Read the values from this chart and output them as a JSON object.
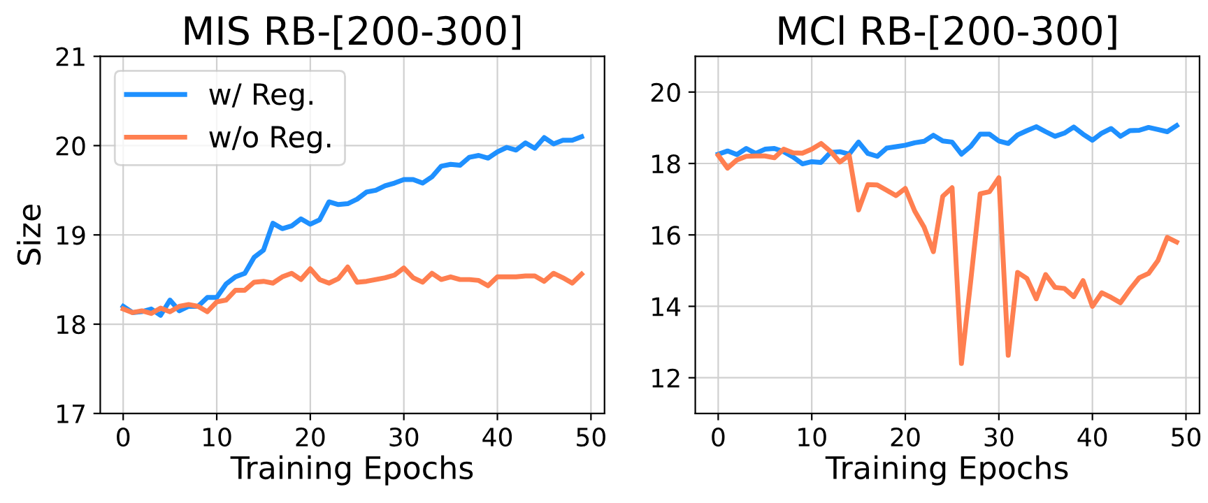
{
  "chart_data": [
    {
      "type": "line",
      "title": "MIS RB-[200-300]",
      "xlabel": "Training Epochs",
      "ylabel": "Size",
      "x": [
        0,
        1,
        2,
        3,
        4,
        5,
        6,
        7,
        8,
        9,
        10,
        11,
        12,
        13,
        14,
        15,
        16,
        17,
        18,
        19,
        20,
        21,
        22,
        23,
        24,
        25,
        26,
        27,
        28,
        29,
        30,
        31,
        32,
        33,
        34,
        35,
        36,
        37,
        38,
        39,
        40,
        41,
        42,
        43,
        44,
        45,
        46,
        47,
        48,
        49
      ],
      "xlim": [
        -2.45,
        51.45
      ],
      "ylim": [
        17,
        21
      ],
      "xticks": [
        0,
        10,
        20,
        30,
        40,
        50
      ],
      "yticks": [
        17,
        18,
        19,
        20,
        21
      ],
      "grid": true,
      "legend": "top left",
      "series": [
        {
          "name": "w/ Reg.",
          "color": "#1e90ff",
          "values": [
            18.2,
            18.13,
            18.14,
            18.17,
            18.1,
            18.27,
            18.15,
            18.2,
            18.2,
            18.3,
            18.3,
            18.45,
            18.53,
            18.57,
            18.75,
            18.83,
            19.13,
            19.07,
            19.1,
            19.18,
            19.12,
            19.17,
            19.37,
            19.34,
            19.35,
            19.4,
            19.48,
            19.5,
            19.55,
            19.58,
            19.62,
            19.62,
            19.58,
            19.65,
            19.77,
            19.79,
            19.78,
            19.87,
            19.89,
            19.86,
            19.93,
            19.98,
            19.95,
            20.03,
            19.97,
            20.09,
            20.02,
            20.06,
            20.06,
            20.1
          ]
        },
        {
          "name": "w/o Reg.",
          "color": "#ff7f50",
          "values": [
            18.17,
            18.13,
            18.15,
            18.12,
            18.18,
            18.14,
            18.2,
            18.22,
            18.2,
            18.14,
            18.25,
            18.27,
            18.38,
            18.38,
            18.47,
            18.48,
            18.46,
            18.53,
            18.57,
            18.5,
            18.62,
            18.5,
            18.46,
            18.51,
            18.64,
            18.47,
            18.48,
            18.5,
            18.52,
            18.55,
            18.63,
            18.52,
            18.47,
            18.57,
            18.5,
            18.53,
            18.5,
            18.5,
            18.49,
            18.43,
            18.53,
            18.53,
            18.53,
            18.54,
            18.54,
            18.48,
            18.57,
            18.52,
            18.46,
            18.56
          ]
        }
      ]
    },
    {
      "type": "line",
      "title": "MCl RB-[200-300]",
      "xlabel": "Training Epochs",
      "x": [
        0,
        1,
        2,
        3,
        4,
        5,
        6,
        7,
        8,
        9,
        10,
        11,
        12,
        13,
        14,
        15,
        16,
        17,
        18,
        19,
        20,
        21,
        22,
        23,
        24,
        25,
        26,
        27,
        28,
        29,
        30,
        31,
        32,
        33,
        34,
        35,
        36,
        37,
        38,
        39,
        40,
        41,
        42,
        43,
        44,
        45,
        46,
        47,
        48,
        49
      ],
      "xlim": [
        -2.45,
        51.45
      ],
      "ylim": [
        11,
        21
      ],
      "xticks": [
        0,
        10,
        20,
        30,
        40,
        50
      ],
      "yticks": [
        12,
        14,
        16,
        18,
        20
      ],
      "grid": true,
      "series": [
        {
          "color": "#1e90ff",
          "values": [
            18.26,
            18.35,
            18.25,
            18.42,
            18.28,
            18.4,
            18.42,
            18.33,
            18.18,
            17.99,
            18.05,
            18.03,
            18.31,
            18.33,
            18.26,
            18.6,
            18.28,
            18.2,
            18.43,
            18.47,
            18.51,
            18.58,
            18.62,
            18.79,
            18.63,
            18.6,
            18.26,
            18.48,
            18.82,
            18.82,
            18.63,
            18.56,
            18.8,
            18.92,
            19.03,
            18.89,
            18.76,
            18.85,
            19.02,
            18.82,
            18.65,
            18.85,
            18.98,
            18.76,
            18.92,
            18.93,
            19.01,
            18.95,
            18.89,
            19.06
          ]
        },
        {
          "color": "#ff7f50",
          "values": [
            18.23,
            17.87,
            18.1,
            18.2,
            18.21,
            18.21,
            18.16,
            18.4,
            18.3,
            18.29,
            18.4,
            18.56,
            18.34,
            18.04,
            18.23,
            16.7,
            17.41,
            17.4,
            17.25,
            17.1,
            17.3,
            16.67,
            16.22,
            15.53,
            17.08,
            17.32,
            12.4,
            14.73,
            17.15,
            17.21,
            17.6,
            12.63,
            14.95,
            14.78,
            14.21,
            14.89,
            14.53,
            14.5,
            14.27,
            14.72,
            14.0,
            14.38,
            14.25,
            14.1,
            14.47,
            14.8,
            14.92,
            15.28,
            15.93,
            15.8
          ]
        }
      ]
    }
  ]
}
